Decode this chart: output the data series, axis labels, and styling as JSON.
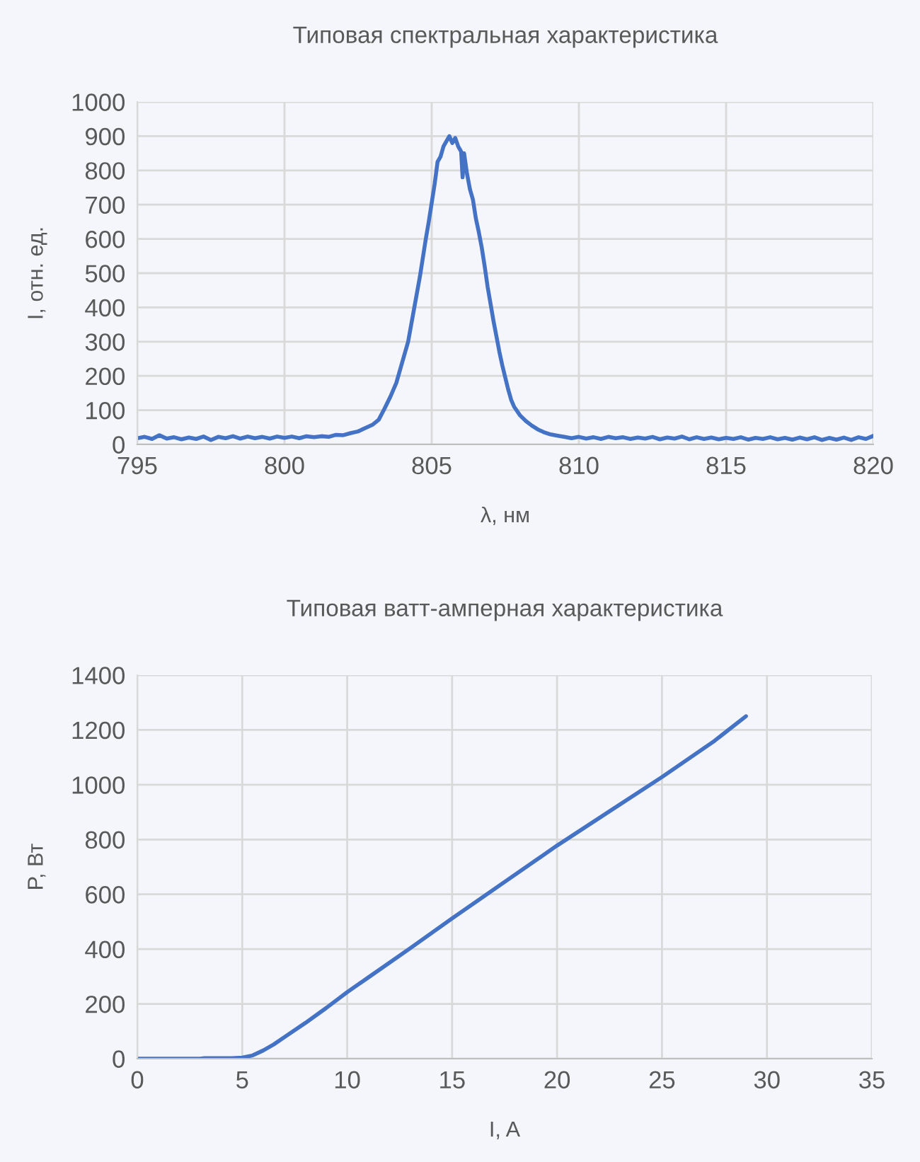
{
  "chart_data": [
    {
      "type": "line",
      "title": "Типовая спектральная характеристика",
      "xlabel": "λ, нм",
      "ylabel": "I, отн. ед.",
      "x": [
        795,
        795.25,
        795.5,
        795.75,
        796,
        796.25,
        796.5,
        796.75,
        797,
        797.25,
        797.5,
        797.75,
        798,
        798.25,
        798.5,
        798.75,
        799,
        799.25,
        799.5,
        799.75,
        800,
        800.25,
        800.5,
        800.75,
        801,
        801.25,
        801.5,
        801.75,
        802,
        802.25,
        802.5,
        802.75,
        803,
        803.2,
        803.4,
        803.6,
        803.8,
        804,
        804.2,
        804.4,
        804.6,
        804.8,
        804.9,
        805,
        805.1,
        805.2,
        805.3,
        805.4,
        805.5,
        805.6,
        805.7,
        805.8,
        805.9,
        806,
        806.05,
        806.1,
        806.2,
        806.3,
        806.4,
        806.5,
        806.6,
        806.7,
        806.8,
        806.9,
        807,
        807.1,
        807.2,
        807.3,
        807.4,
        807.5,
        807.6,
        807.7,
        807.8,
        808,
        808.2,
        808.4,
        808.6,
        808.8,
        809,
        809.25,
        809.5,
        809.75,
        810,
        810.25,
        810.5,
        810.75,
        811,
        811.25,
        811.5,
        811.75,
        812,
        812.25,
        812.5,
        812.75,
        813,
        813.25,
        813.5,
        813.75,
        814,
        814.25,
        814.5,
        814.75,
        815,
        815.25,
        815.5,
        815.75,
        816,
        816.25,
        816.5,
        816.75,
        817,
        817.25,
        817.5,
        817.75,
        818,
        818.25,
        818.5,
        818.75,
        819,
        819.25,
        819.5,
        819.75,
        820
      ],
      "series": [
        {
          "color": "#4472c4",
          "values": [
            18,
            22,
            16,
            27,
            17,
            21,
            15,
            20,
            16,
            23,
            13,
            22,
            18,
            24,
            17,
            23,
            18,
            22,
            17,
            23,
            19,
            23,
            18,
            24,
            21,
            24,
            22,
            28,
            27,
            33,
            38,
            48,
            58,
            72,
            105,
            140,
            180,
            240,
            300,
            395,
            490,
            600,
            650,
            705,
            760,
            825,
            840,
            870,
            885,
            900,
            880,
            895,
            870,
            855,
            780,
            850,
            790,
            745,
            715,
            660,
            620,
            575,
            520,
            460,
            410,
            360,
            315,
            270,
            230,
            195,
            160,
            130,
            110,
            85,
            68,
            55,
            44,
            36,
            30,
            26,
            22,
            18,
            22,
            17,
            21,
            16,
            22,
            18,
            21,
            16,
            20,
            17,
            22,
            15,
            20,
            17,
            23,
            15,
            21,
            16,
            20,
            15,
            19,
            16,
            21,
            14,
            19,
            16,
            21,
            15,
            19,
            14,
            20,
            15,
            21,
            13,
            19,
            14,
            20,
            13,
            21,
            16,
            25
          ]
        }
      ],
      "xlim": [
        795,
        820
      ],
      "xticks": [
        795,
        800,
        805,
        810,
        815,
        820
      ],
      "ylim": [
        0,
        1000
      ],
      "yticks": [
        0,
        100,
        200,
        300,
        400,
        500,
        600,
        700,
        800,
        900,
        1000
      ],
      "grid": true
    },
    {
      "type": "line",
      "title": "Типовая ватт-амперная характеристика",
      "xlabel": "I, A",
      "ylabel": "P, Вт",
      "x": [
        0,
        3,
        3.2,
        4.5,
        5,
        5.5,
        6,
        6.5,
        7,
        8,
        9,
        10,
        11,
        13,
        15,
        17.5,
        20,
        22.5,
        25,
        27.5,
        29
      ],
      "series": [
        {
          "color": "#4472c4",
          "values": [
            0,
            0,
            2,
            2,
            4,
            12,
            30,
            52,
            78,
            130,
            185,
            243,
            296,
            403,
            512,
            645,
            778,
            903,
            1028,
            1160,
            1250
          ]
        }
      ],
      "xlim": [
        0,
        35
      ],
      "xticks": [
        0,
        5,
        10,
        15,
        20,
        25,
        30,
        35
      ],
      "ylim": [
        0,
        1400
      ],
      "yticks": [
        0,
        200,
        400,
        600,
        800,
        1000,
        1200,
        1400
      ],
      "grid": true
    }
  ]
}
